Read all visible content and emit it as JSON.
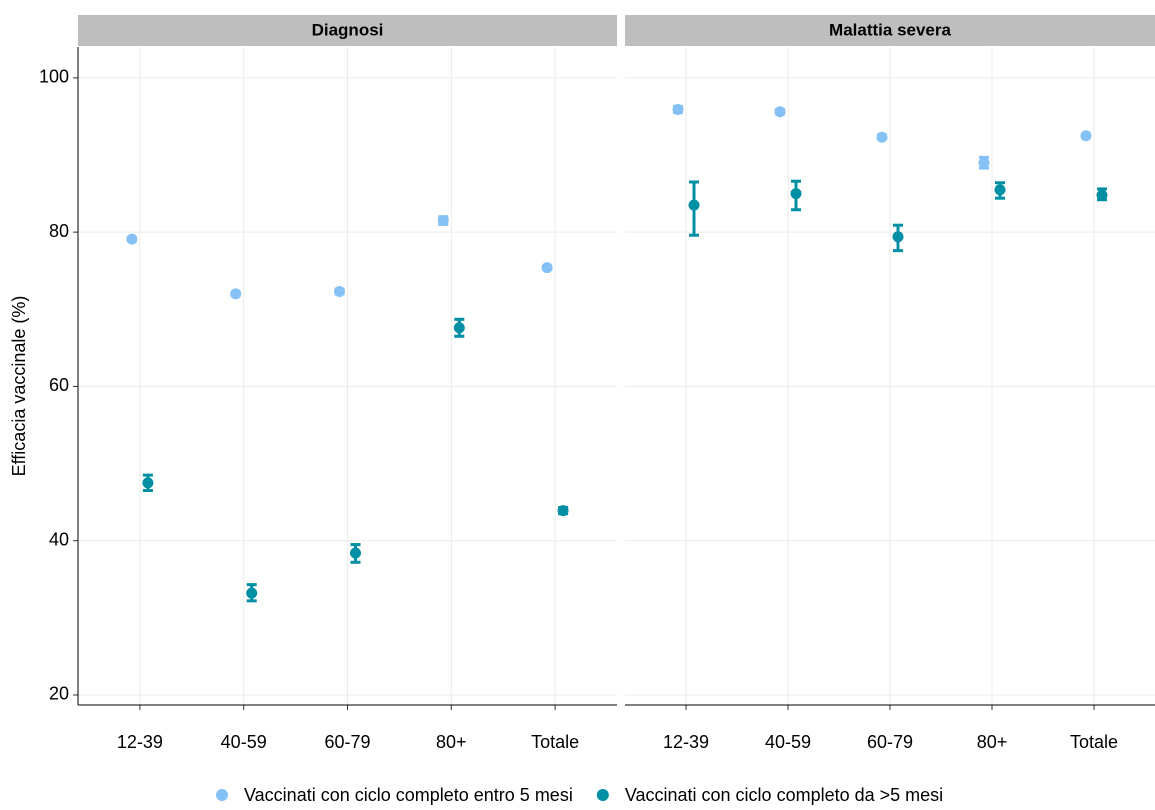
{
  "chart_data": [
    {
      "type": "scatter",
      "title": "Diagnosi",
      "y_label": "Efficacia vaccinale (%)",
      "categories": [
        "12-39",
        "40-59",
        "60-79",
        "80+",
        "Totale"
      ],
      "ylim": [
        18.7,
        104
      ],
      "yticks": [
        20,
        40,
        60,
        80,
        100
      ],
      "grid": true,
      "series": [
        {
          "name": "Vaccinati con ciclo completo entro 5 mesi",
          "color": "#85c1f5",
          "values": [
            79.1,
            72.0,
            72.3,
            81.5,
            75.4
          ],
          "lower": [
            78.9,
            71.8,
            72.0,
            81.0,
            75.2
          ],
          "upper": [
            79.3,
            72.2,
            72.6,
            82.0,
            75.6
          ]
        },
        {
          "name": "Vaccinati con ciclo completo da >5 mesi",
          "color": "#008fa3",
          "values": [
            47.5,
            33.2,
            38.4,
            67.6,
            43.9
          ],
          "lower": [
            46.5,
            32.2,
            37.2,
            66.5,
            43.5
          ],
          "upper": [
            48.5,
            34.3,
            39.5,
            68.7,
            44.3
          ]
        }
      ]
    },
    {
      "type": "scatter",
      "title": "Malattia severa",
      "categories": [
        "12-39",
        "40-59",
        "60-79",
        "80+",
        "Totale"
      ],
      "ylim": [
        18.7,
        104
      ],
      "yticks": [
        20,
        40,
        60,
        80,
        100
      ],
      "grid": true,
      "series": [
        {
          "color": "#85c1f5",
          "values": [
            95.9,
            95.6,
            92.3,
            89.0,
            92.5
          ],
          "lower": [
            95.5,
            95.3,
            92.1,
            88.3,
            92.3
          ],
          "upper": [
            96.3,
            95.9,
            92.6,
            89.7,
            92.7
          ]
        },
        {
          "color": "#008fa3",
          "values": [
            83.5,
            85.0,
            79.4,
            85.5,
            84.8
          ],
          "lower": [
            79.6,
            82.9,
            77.6,
            84.4,
            84.2
          ],
          "upper": [
            86.5,
            86.6,
            80.9,
            86.4,
            85.6
          ]
        }
      ]
    }
  ]
}
